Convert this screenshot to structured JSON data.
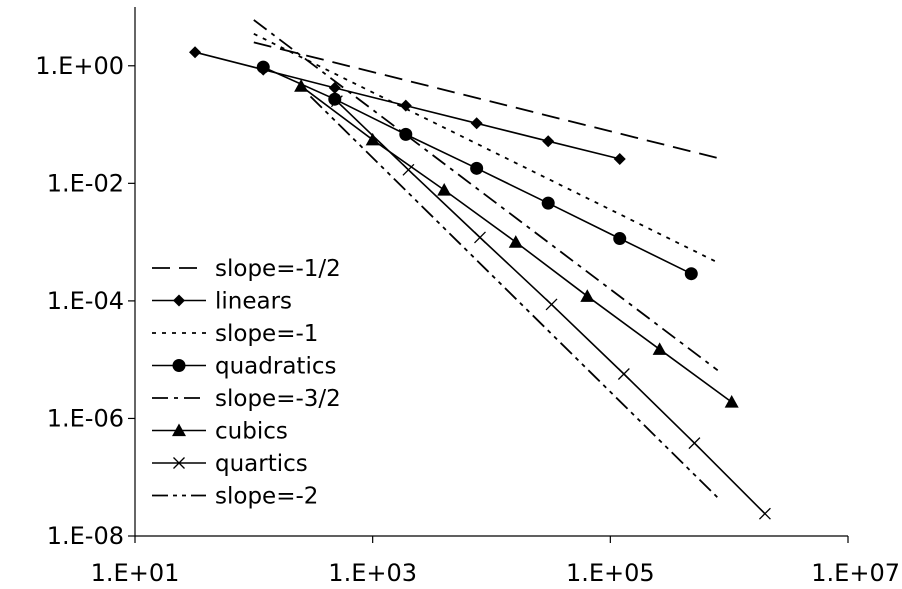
{
  "chart_data": {
    "type": "line",
    "title": "",
    "xlabel": "",
    "ylabel": "",
    "x_scale": "log",
    "y_scale": "log",
    "xlim": [
      10,
      10000000
    ],
    "ylim": [
      1e-08,
      10
    ],
    "x_ticks": [
      {
        "value": 10,
        "label": "1.E+01"
      },
      {
        "value": 1000,
        "label": "1.E+03"
      },
      {
        "value": 100000,
        "label": "1.E+05"
      },
      {
        "value": 10000000,
        "label": "1.E+07"
      }
    ],
    "y_ticks": [
      {
        "value": 1,
        "label": "1.E+00"
      },
      {
        "value": 0.01,
        "label": "1.E-02"
      },
      {
        "value": 0.0001,
        "label": "1.E-04"
      },
      {
        "value": 1e-06,
        "label": "1.E-06"
      },
      {
        "value": 1e-08,
        "label": "1.E-08"
      }
    ],
    "grid": false,
    "legend_position": "bottom-left",
    "series": [
      {
        "name": "slope=-1/2",
        "line": "dash",
        "marker": "none",
        "points": [
          [
            100,
            2.5
          ],
          [
            800000,
            0.027
          ]
        ]
      },
      {
        "name": "linears",
        "line": "solid",
        "marker": "diamond",
        "points": [
          [
            32,
            1.7
          ],
          [
            120,
            0.86
          ],
          [
            480,
            0.42
          ],
          [
            1900,
            0.21
          ],
          [
            7500,
            0.105
          ],
          [
            30000,
            0.052
          ],
          [
            120000,
            0.026
          ]
        ]
      },
      {
        "name": "slope=-1",
        "line": "dot",
        "marker": "none",
        "points": [
          [
            100,
            3.5
          ],
          [
            800000,
            0.00045
          ]
        ]
      },
      {
        "name": "quadratics",
        "line": "solid",
        "marker": "circle",
        "points": [
          [
            120,
            0.95
          ],
          [
            480,
            0.27
          ],
          [
            1900,
            0.068
          ],
          [
            7500,
            0.018
          ],
          [
            30000,
            0.0046
          ],
          [
            120000,
            0.00115
          ],
          [
            480000,
            0.00029
          ]
        ]
      },
      {
        "name": "slope=-3/2",
        "line": "dashdot",
        "marker": "none",
        "points": [
          [
            100,
            6
          ],
          [
            800000,
            6.6e-06
          ]
        ]
      },
      {
        "name": "cubics",
        "line": "solid",
        "marker": "triangle",
        "points": [
          [
            250,
            0.45
          ],
          [
            1000,
            0.055
          ],
          [
            4000,
            0.0077
          ],
          [
            16000,
            0.001
          ],
          [
            64000,
            0.00012
          ],
          [
            260000,
            1.5e-05
          ],
          [
            1050000,
            1.9e-06
          ]
        ]
      },
      {
        "name": "quartics",
        "line": "solid",
        "marker": "x",
        "points": [
          [
            500,
            0.25
          ],
          [
            2000,
            0.017
          ],
          [
            8000,
            0.0012
          ],
          [
            32000,
            8.7e-05
          ],
          [
            130000,
            5.7e-06
          ],
          [
            510000,
            3.8e-07
          ],
          [
            2000000,
            2.4e-08
          ]
        ]
      },
      {
        "name": "slope=-2",
        "line": "dashdotdot",
        "marker": "none",
        "points": [
          [
            300,
            0.3
          ],
          [
            800000,
            4.5e-08
          ]
        ]
      }
    ]
  }
}
